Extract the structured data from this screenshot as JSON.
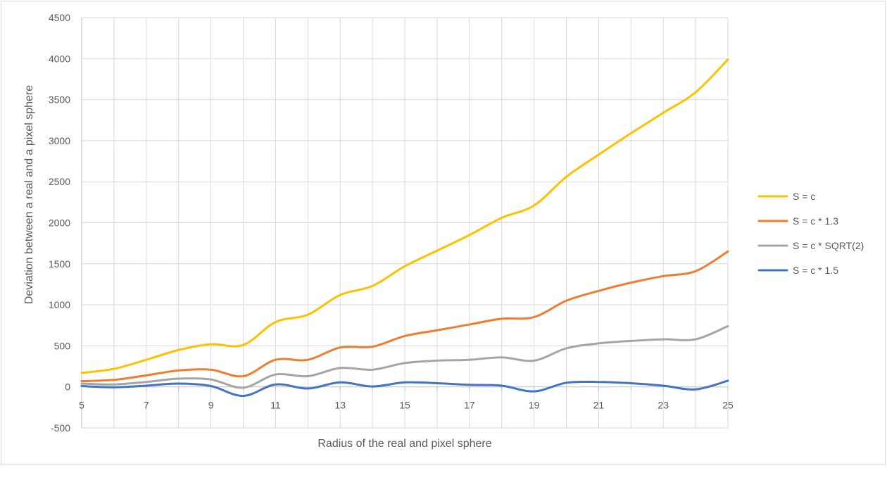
{
  "chart_data": {
    "type": "line",
    "title": "",
    "xlabel": "Radius of the real and pixel sphere",
    "ylabel": "Deviation between  a real and a pixel sphere",
    "xlim": [
      5,
      25
    ],
    "ylim": [
      -500,
      4500
    ],
    "x_ticks": [
      5,
      7,
      9,
      11,
      13,
      15,
      17,
      19,
      21,
      23,
      25
    ],
    "y_ticks": [
      -500,
      0,
      500,
      1000,
      1500,
      2000,
      2500,
      3000,
      3500,
      4000,
      4500
    ],
    "grid": true,
    "legend_position": "right",
    "smooth": true,
    "x": [
      5,
      6,
      7,
      8,
      9,
      10,
      11,
      12,
      13,
      14,
      15,
      16,
      17,
      18,
      19,
      20,
      21,
      22,
      23,
      24,
      25
    ],
    "series": [
      {
        "name": "S = c",
        "color": "#ffc000",
        "values": [
          170,
          220,
          330,
          450,
          520,
          510,
          790,
          880,
          1120,
          1230,
          1470,
          1660,
          1850,
          2060,
          2210,
          2560,
          2830,
          3090,
          3340,
          3590,
          3990
        ]
      },
      {
        "name": "S = c * 1.3",
        "color": "#ed7d31",
        "values": [
          70,
          85,
          140,
          200,
          210,
          130,
          330,
          330,
          480,
          490,
          620,
          690,
          760,
          830,
          850,
          1050,
          1170,
          1270,
          1350,
          1410,
          1650
        ]
      },
      {
        "name": "S = c * SQRT(2)",
        "color": "#a5a5a5",
        "values": [
          40,
          30,
          60,
          100,
          90,
          -10,
          150,
          130,
          230,
          210,
          290,
          320,
          330,
          360,
          320,
          470,
          530,
          560,
          580,
          580,
          740
        ]
      },
      {
        "name": "S = c * 1.5",
        "color": "#4472c4",
        "values": [
          10,
          -5,
          15,
          40,
          10,
          -110,
          30,
          -20,
          55,
          5,
          55,
          45,
          25,
          15,
          -55,
          50,
          60,
          45,
          15,
          -30,
          75
        ]
      }
    ]
  }
}
